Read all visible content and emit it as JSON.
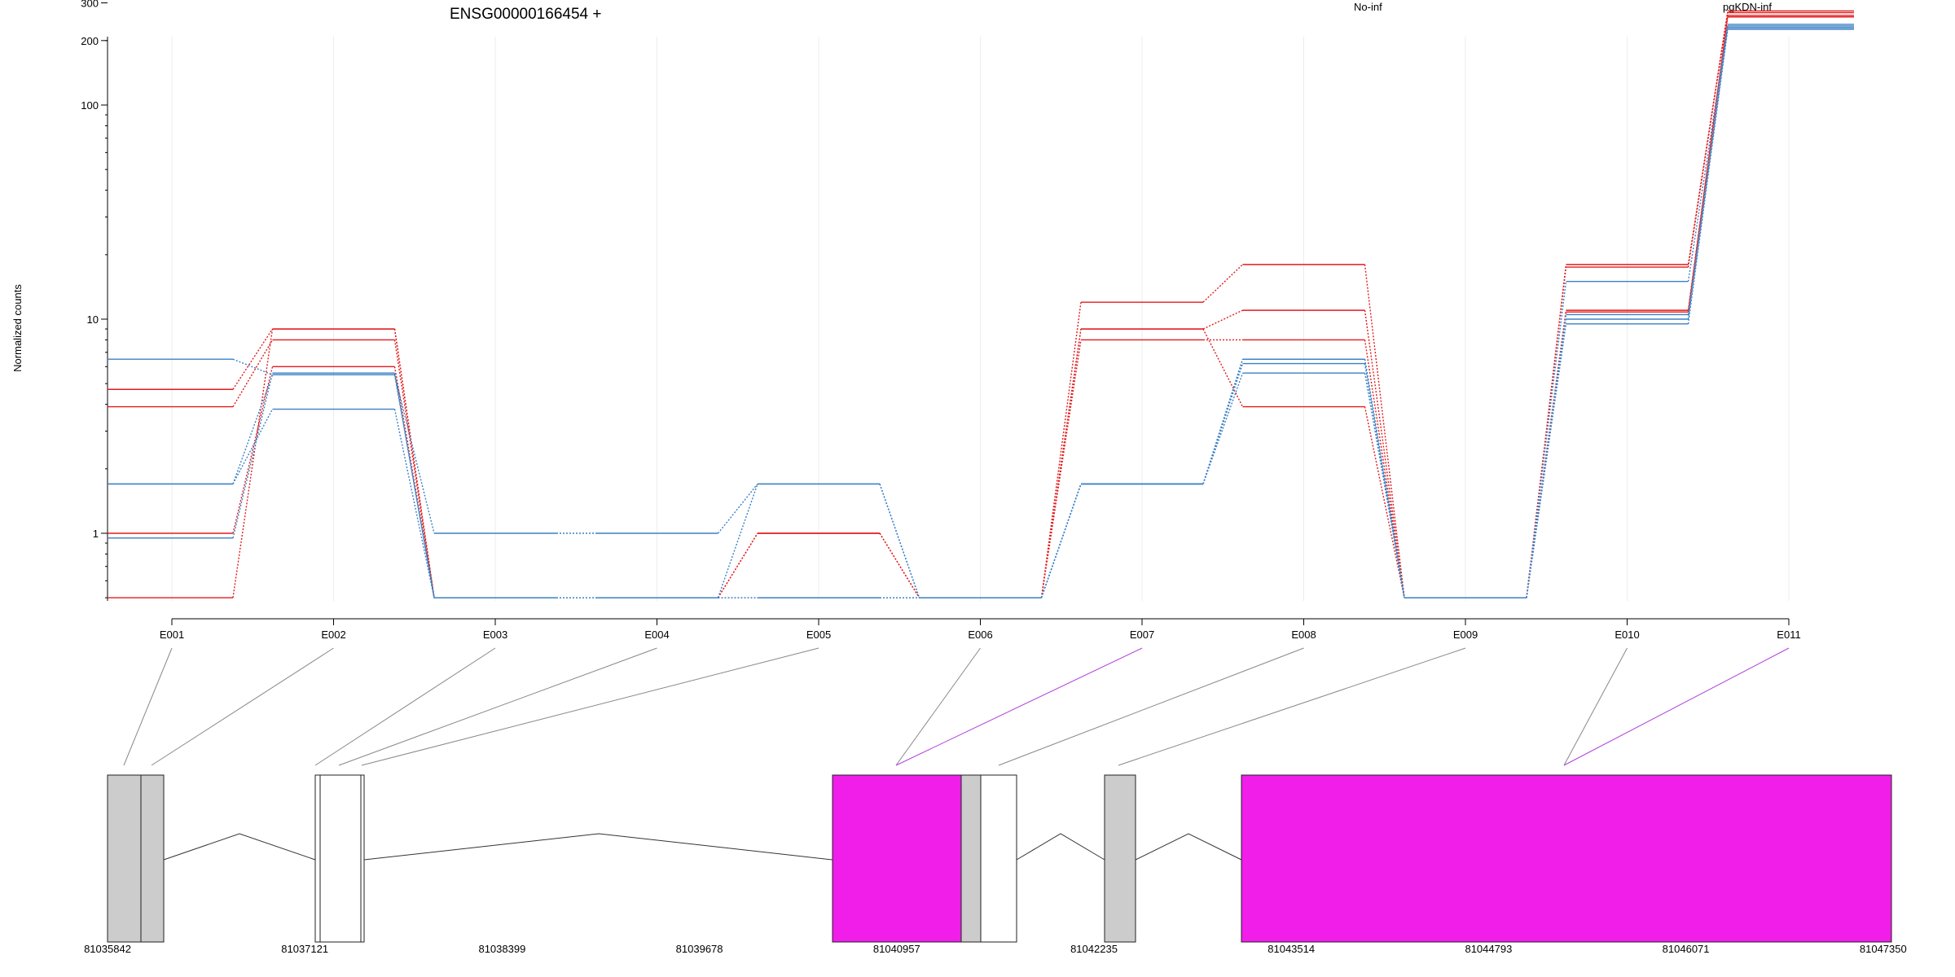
{
  "header": {
    "title": "ENSG00000166454 +"
  },
  "legend": {
    "groups": [
      {
        "name": "No-inf",
        "color": "#e31a1c"
      },
      {
        "name": "pgKDN-inf",
        "color": "#3a80c4"
      }
    ]
  },
  "chart_data": {
    "type": "line",
    "title": "ENSG00000166454 +",
    "ylabel": "Normalized counts",
    "xlabel": "",
    "y_scale": "log",
    "y_ticks": [
      "300",
      "200",
      "100",
      "10",
      "1"
    ],
    "categories": [
      "E001",
      "E002",
      "E003",
      "E004",
      "E005",
      "E006",
      "E007",
      "E008",
      "E009",
      "E010",
      "E011"
    ],
    "zero_counts_shown_at": 0.5,
    "grid": true,
    "series": [
      {
        "group": "No-inf",
        "color": "#e31a1c",
        "values": [
          4.7,
          9.0,
          0.5,
          0.5,
          1.0,
          0.5,
          12.0,
          18.0,
          0.5,
          18.0,
          275
        ]
      },
      {
        "group": "No-inf",
        "color": "#e31a1c",
        "values": [
          3.9,
          8.0,
          0.5,
          0.5,
          1.0,
          0.5,
          9.0,
          11.0,
          0.5,
          17.5,
          270
        ]
      },
      {
        "group": "No-inf",
        "color": "#e31a1c",
        "values": [
          1.0,
          6.0,
          0.5,
          0.5,
          0.5,
          0.5,
          8.0,
          8.0,
          0.5,
          11.0,
          262
        ]
      },
      {
        "group": "No-inf",
        "color": "#e31a1c",
        "values": [
          0.5,
          9.0,
          0.5,
          0.5,
          0.5,
          0.5,
          9.0,
          3.9,
          0.5,
          10.8,
          258
        ]
      },
      {
        "group": "pgKDN-inf",
        "color": "#3a80c4",
        "values": [
          6.5,
          5.5,
          1.0,
          1.0,
          1.7,
          0.5,
          1.7,
          6.5,
          0.5,
          15.0,
          238
        ]
      },
      {
        "group": "pgKDN-inf",
        "color": "#3a80c4",
        "values": [
          1.7,
          5.5,
          0.5,
          0.5,
          1.7,
          0.5,
          1.7,
          6.5,
          0.5,
          10.0,
          234
        ]
      },
      {
        "group": "pgKDN-inf",
        "color": "#3a80c4",
        "values": [
          1.7,
          3.8,
          0.5,
          0.5,
          0.5,
          0.5,
          1.7,
          5.6,
          0.5,
          9.5,
          226
        ]
      },
      {
        "group": "pgKDN-inf",
        "color": "#3a80c4",
        "values": [
          0.95,
          5.6,
          0.5,
          0.5,
          0.5,
          0.5,
          1.7,
          6.2,
          0.5,
          10.5,
          230
        ]
      }
    ]
  },
  "gene_model": {
    "coordinates": [
      "81035842",
      "81037121",
      "81038399",
      "81039678",
      "81040957",
      "81042235",
      "81043514",
      "81044793",
      "81046071",
      "81047350"
    ],
    "colors": {
      "exon_fill": "#cccccc",
      "utr_fill": "#ffffff",
      "highlight_fill": "#f01ee8",
      "highlight_link": "#b040d8",
      "link": "#888888",
      "intron": "#333333"
    },
    "highlighted_exons": [
      "E007",
      "E011"
    ]
  }
}
